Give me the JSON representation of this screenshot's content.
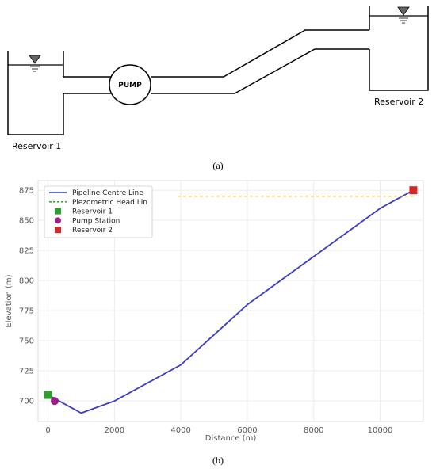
{
  "schematic": {
    "reservoir_1_label": "Reservoir 1",
    "reservoir_2_label": "Reservoir 2",
    "pump_label": "PUMP",
    "water_level_icon": "water-level-triangle-icon"
  },
  "panel_labels": {
    "a": "(a)",
    "b": "(b)"
  },
  "chart_data": {
    "type": "line",
    "title": "",
    "xlabel": "Distance (m)",
    "ylabel": "Elevation (m)",
    "xlim": [
      -300,
      11300
    ],
    "ylim": [
      683,
      883
    ],
    "x_ticks": [
      0,
      2000,
      4000,
      6000,
      8000,
      10000
    ],
    "y_ticks": [
      700,
      725,
      750,
      775,
      800,
      825,
      850,
      875
    ],
    "grid": true,
    "legend_position": "top-left",
    "series": [
      {
        "name": "Pipeline Centre Line",
        "kind": "line",
        "color": "#3b3bc8",
        "style": "solid",
        "points": [
          [
            0,
            705
          ],
          [
            1000,
            690
          ],
          [
            2000,
            700
          ],
          [
            4000,
            730
          ],
          [
            6000,
            780
          ],
          [
            10000,
            860
          ],
          [
            11000,
            875
          ]
        ]
      },
      {
        "name": "Piezometric Head Lin",
        "kind": "line",
        "color": "#f5b942",
        "legend_color": "#3aaa3a",
        "style": "dashed",
        "points": [
          [
            3900,
            870
          ],
          [
            11000,
            870
          ]
        ]
      },
      {
        "name": "Reservoir 1",
        "kind": "marker",
        "marker": "square",
        "color": "#2ca02c",
        "points": [
          [
            0,
            705
          ]
        ]
      },
      {
        "name": "Pump Station",
        "kind": "marker",
        "marker": "circle",
        "color": "#9b1d8a",
        "points": [
          [
            200,
            700
          ]
        ]
      },
      {
        "name": "Reservoir 2",
        "kind": "marker",
        "marker": "square",
        "color": "#d62728",
        "points": [
          [
            11000,
            875
          ]
        ]
      }
    ]
  }
}
